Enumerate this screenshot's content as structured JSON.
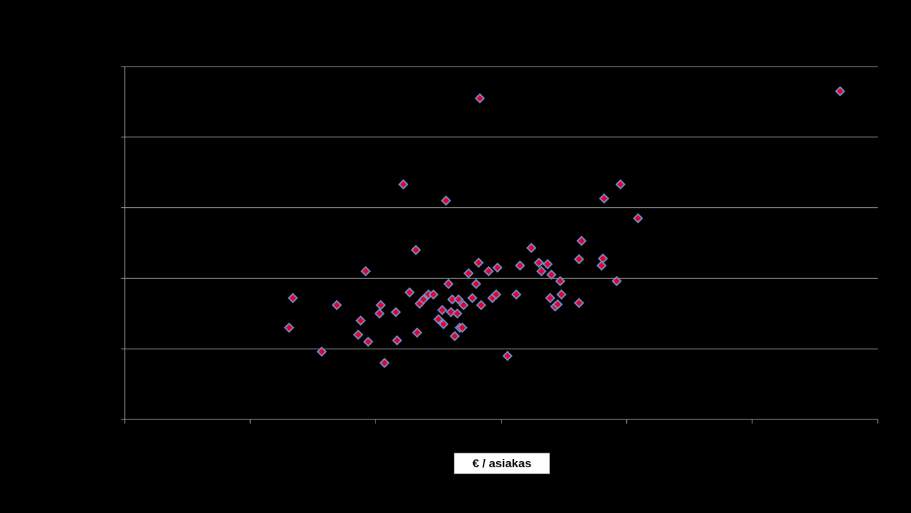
{
  "chart_data": {
    "type": "scatter",
    "title": "",
    "xlabel": "€ / asiakas",
    "ylabel": "",
    "xlim": [
      0,
      6
    ],
    "ylim": [
      0,
      5
    ],
    "x_ticks": [
      0,
      1,
      2,
      3,
      4,
      5,
      6
    ],
    "y_gridlines": [
      0,
      1,
      2,
      3,
      4,
      5
    ],
    "grid": true,
    "legend": "none",
    "marker": "diamond",
    "colors": {
      "background": "#000000",
      "marker_fill": "#e8001c",
      "marker_stroke": "#6f8fd6",
      "gridline": "#a6a6a6",
      "axis": "#a6a6a6"
    },
    "series": [
      {
        "points": [
          [
            1.31,
            1.3
          ],
          [
            1.34,
            1.72
          ],
          [
            1.57,
            0.96
          ],
          [
            1.69,
            1.62
          ],
          [
            1.86,
            1.2
          ],
          [
            1.88,
            1.4
          ],
          [
            1.92,
            2.1
          ],
          [
            1.94,
            1.1
          ],
          [
            2.03,
            1.5
          ],
          [
            2.04,
            1.62
          ],
          [
            2.07,
            0.8
          ],
          [
            2.16,
            1.52
          ],
          [
            2.17,
            1.12
          ],
          [
            2.22,
            3.33
          ],
          [
            2.27,
            1.8
          ],
          [
            2.32,
            2.4
          ],
          [
            2.33,
            1.23
          ],
          [
            2.35,
            1.64
          ],
          [
            2.38,
            1.7
          ],
          [
            2.42,
            1.77
          ],
          [
            2.46,
            1.77
          ],
          [
            2.5,
            1.42
          ],
          [
            2.53,
            1.55
          ],
          [
            2.54,
            1.35
          ],
          [
            2.56,
            3.1
          ],
          [
            2.58,
            1.92
          ],
          [
            2.6,
            1.52
          ],
          [
            2.61,
            1.7
          ],
          [
            2.63,
            1.18
          ],
          [
            2.65,
            1.5
          ],
          [
            2.66,
            1.7
          ],
          [
            2.67,
            1.3
          ],
          [
            2.69,
            1.3
          ],
          [
            2.7,
            1.62
          ],
          [
            2.74,
            2.07
          ],
          [
            2.77,
            1.72
          ],
          [
            2.8,
            1.92
          ],
          [
            2.82,
            2.22
          ],
          [
            2.83,
            4.55
          ],
          [
            2.84,
            1.62
          ],
          [
            2.9,
            2.1
          ],
          [
            2.93,
            1.72
          ],
          [
            2.96,
            1.77
          ],
          [
            2.97,
            2.15
          ],
          [
            3.05,
            0.9
          ],
          [
            3.12,
            1.77
          ],
          [
            3.15,
            2.18
          ],
          [
            3.24,
            2.43
          ],
          [
            3.3,
            2.22
          ],
          [
            3.32,
            2.1
          ],
          [
            3.37,
            2.2
          ],
          [
            3.39,
            1.72
          ],
          [
            3.4,
            2.05
          ],
          [
            3.43,
            1.6
          ],
          [
            3.45,
            1.63
          ],
          [
            3.47,
            1.96
          ],
          [
            3.48,
            1.77
          ],
          [
            3.62,
            1.65
          ],
          [
            3.62,
            2.27
          ],
          [
            3.64,
            2.53
          ],
          [
            3.8,
            2.18
          ],
          [
            3.81,
            2.28
          ],
          [
            3.82,
            3.13
          ],
          [
            3.92,
            1.96
          ],
          [
            3.95,
            3.33
          ],
          [
            4.09,
            2.85
          ],
          [
            5.7,
            4.65
          ]
        ]
      }
    ]
  }
}
